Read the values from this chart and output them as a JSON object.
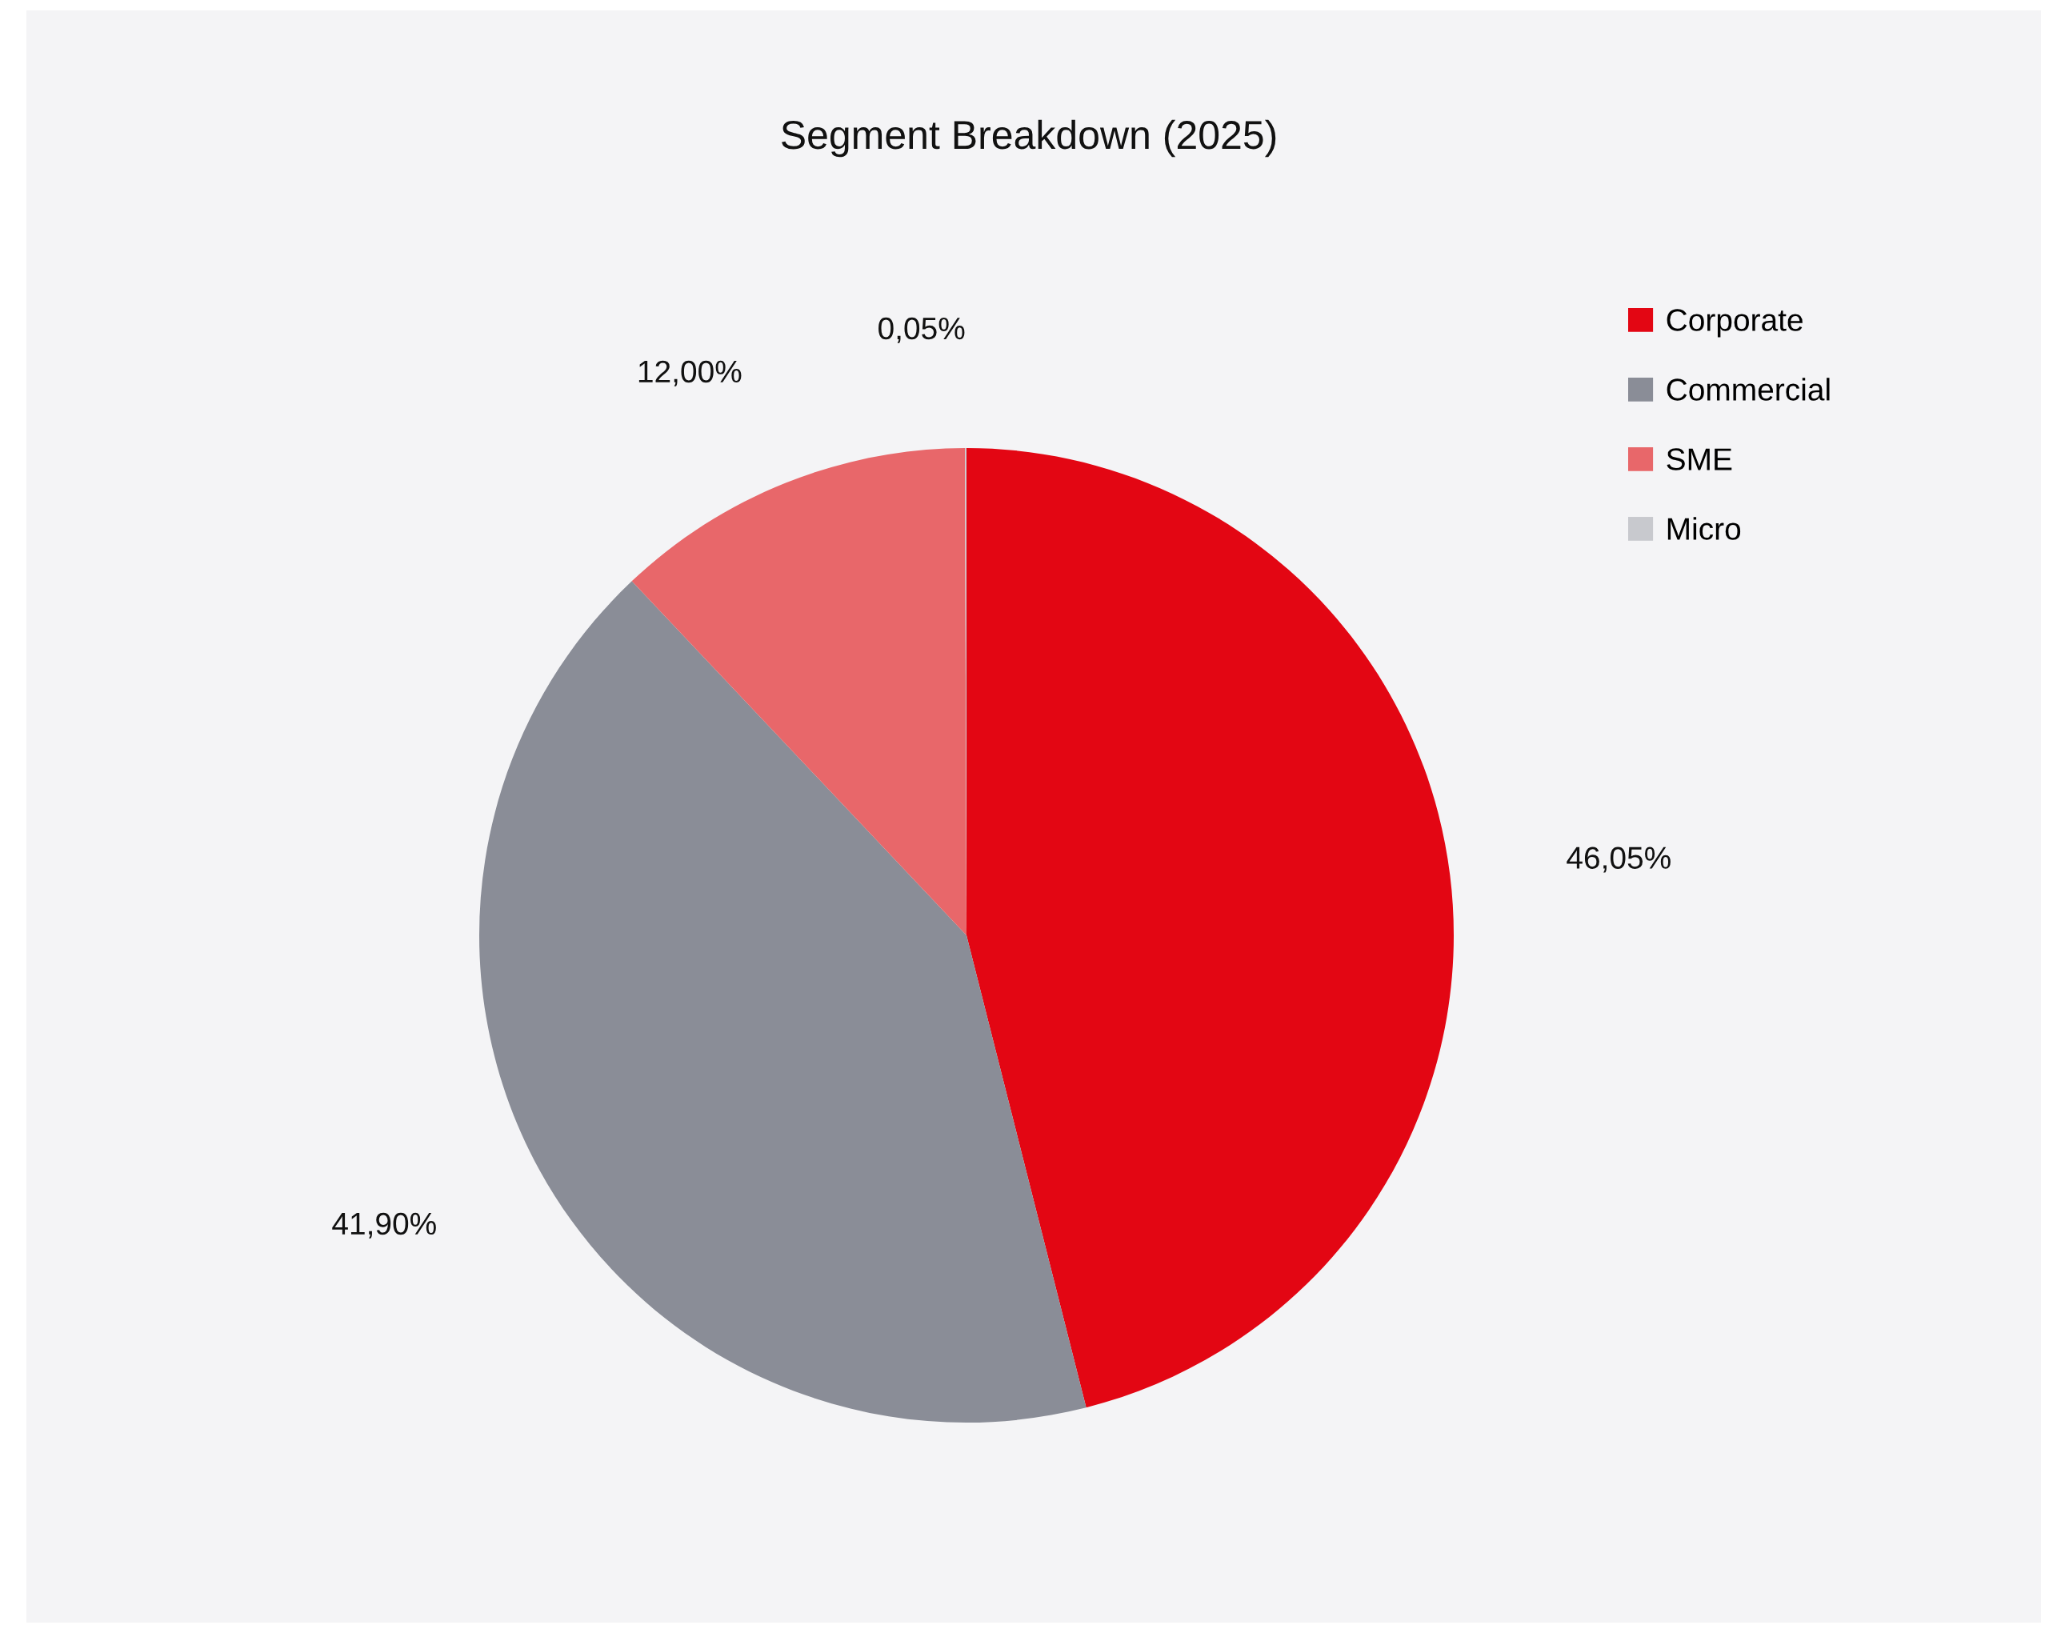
{
  "chart_data": {
    "type": "pie",
    "title": "Segment Breakdown (2025)",
    "categories": [
      "Corporate",
      "Commercial",
      "SME",
      "Micro"
    ],
    "values": [
      46.05,
      41.9,
      12.0,
      0.05
    ],
    "colors": [
      "#e30613",
      "#8a8d97",
      "#e8676a",
      "#c8c9ce"
    ],
    "value_labels": [
      "46,05%",
      "41,90%",
      "12,00%",
      "0,05%"
    ],
    "legend": "top right"
  }
}
